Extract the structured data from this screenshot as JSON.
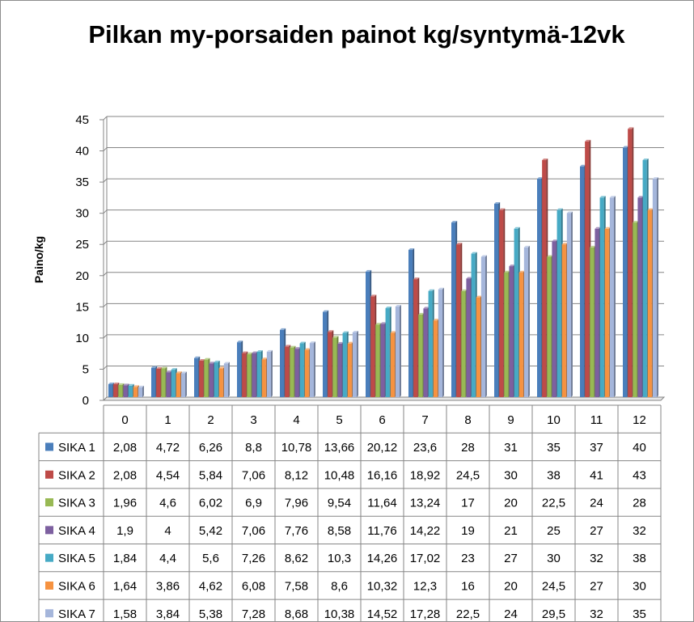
{
  "chart_data": {
    "type": "bar",
    "title": "Pilkan my-porsaiden painot kg/syntymä-12vk",
    "ylabel": "Paino/kg",
    "xlabel": "",
    "ylim": [
      0,
      45
    ],
    "y_ticks": [
      0,
      5,
      10,
      15,
      20,
      25,
      30,
      35,
      40,
      45
    ],
    "grid": true,
    "legend": "data-table",
    "categories": [
      "0",
      "1",
      "2",
      "3",
      "4",
      "5",
      "6",
      "7",
      "8",
      "9",
      "10",
      "11",
      "12"
    ],
    "series": [
      {
        "name": "SIKA 1",
        "color": "#4a7ebb",
        "values": [
          2.08,
          4.72,
          6.26,
          8.8,
          10.78,
          13.66,
          20.12,
          23.6,
          28,
          31,
          35,
          37,
          40
        ],
        "labels": [
          "2,08",
          "4,72",
          "6,26",
          "8,8",
          "10,78",
          "13,66",
          "20,12",
          "23,6",
          "28",
          "31",
          "35",
          "37",
          "40"
        ]
      },
      {
        "name": "SIKA 2",
        "color": "#be4b48",
        "values": [
          2.08,
          4.54,
          5.84,
          7.06,
          8.12,
          10.48,
          16.16,
          18.92,
          24.5,
          30,
          38,
          41,
          43
        ],
        "labels": [
          "2,08",
          "4,54",
          "5,84",
          "7,06",
          "8,12",
          "10,48",
          "16,16",
          "18,92",
          "24,5",
          "30",
          "38",
          "41",
          "43"
        ]
      },
      {
        "name": "SIKA 3",
        "color": "#98b954",
        "values": [
          1.96,
          4.6,
          6.02,
          6.9,
          7.96,
          9.54,
          11.64,
          13.24,
          17,
          20,
          22.5,
          24,
          28
        ],
        "labels": [
          "1,96",
          "4,6",
          "6,02",
          "6,9",
          "7,96",
          "9,54",
          "11,64",
          "13,24",
          "17",
          "20",
          "22,5",
          "24",
          "28"
        ]
      },
      {
        "name": "SIKA 4",
        "color": "#7d60a0",
        "values": [
          1.9,
          4,
          5.42,
          7.06,
          7.76,
          8.58,
          11.76,
          14.22,
          19,
          21,
          25,
          27,
          32
        ],
        "labels": [
          "1,9",
          "4",
          "5,42",
          "7,06",
          "7,76",
          "8,58",
          "11,76",
          "14,22",
          "19",
          "21",
          "25",
          "27",
          "32"
        ]
      },
      {
        "name": "SIKA 5",
        "color": "#46aac5",
        "values": [
          1.84,
          4.4,
          5.6,
          7.26,
          8.62,
          10.3,
          14.26,
          17.02,
          23,
          27,
          30,
          32,
          38
        ],
        "labels": [
          "1,84",
          "4,4",
          "5,6",
          "7,26",
          "8,62",
          "10,3",
          "14,26",
          "17,02",
          "23",
          "27",
          "30",
          "32",
          "38"
        ]
      },
      {
        "name": "SIKA 6",
        "color": "#f69240",
        "values": [
          1.64,
          3.86,
          4.62,
          6.08,
          7.58,
          8.6,
          10.32,
          12.3,
          16,
          20,
          24.5,
          27,
          30
        ],
        "labels": [
          "1,64",
          "3,86",
          "4,62",
          "6,08",
          "7,58",
          "8,6",
          "10,32",
          "12,3",
          "16",
          "20",
          "24,5",
          "27",
          "30"
        ]
      },
      {
        "name": "SIKA 7",
        "color": "#a5b6db",
        "values": [
          1.58,
          3.84,
          5.38,
          7.28,
          8.68,
          10.38,
          14.52,
          17.28,
          22.5,
          24,
          29.5,
          32,
          35
        ],
        "labels": [
          "1,58",
          "3,84",
          "5,38",
          "7,28",
          "8,68",
          "10,38",
          "14,52",
          "17,28",
          "22,5",
          "24",
          "29,5",
          "32",
          "35"
        ]
      }
    ]
  }
}
